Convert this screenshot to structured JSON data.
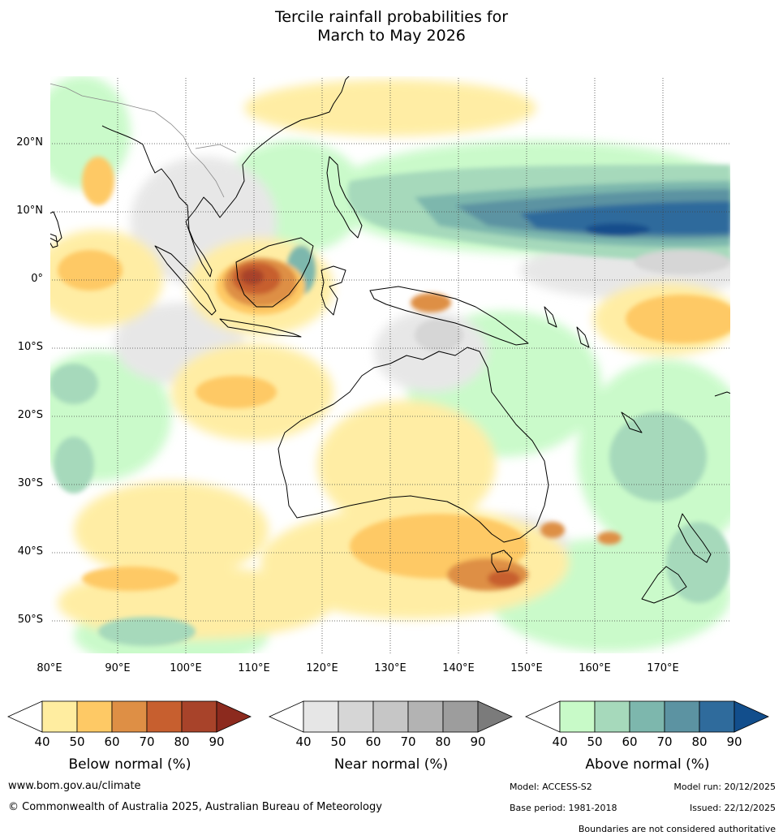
{
  "title_line1": "Tercile rainfall probabilities for",
  "title_line2": "March to May 2026",
  "map": {
    "lat_labels": [
      "20°N",
      "10°N",
      "0°",
      "10°S",
      "20°S",
      "30°S",
      "40°S",
      "50°S"
    ],
    "lon_labels": [
      "80°E",
      "90°E",
      "100°E",
      "110°E",
      "120°E",
      "130°E",
      "140°E",
      "150°E",
      "160°E",
      "170°E"
    ]
  },
  "legends": [
    {
      "title": "Below normal (%)",
      "ticks": [
        "40",
        "50",
        "60",
        "70",
        "80",
        "90"
      ],
      "colors": [
        "#ffffff",
        "#ffeda0",
        "#fec965",
        "#de8f45",
        "#c75f2f",
        "#a8432a",
        "#8c2a1e"
      ]
    },
    {
      "title": "Near normal (%)",
      "ticks": [
        "40",
        "50",
        "60",
        "70",
        "80",
        "90"
      ],
      "colors": [
        "#ffffff",
        "#e6e6e6",
        "#d6d6d6",
        "#c6c6c6",
        "#b3b3b3",
        "#9d9d9d",
        "#7b7b7b"
      ]
    },
    {
      "title": "Above normal (%)",
      "ticks": [
        "40",
        "50",
        "60",
        "70",
        "80",
        "90"
      ],
      "colors": [
        "#ffffff",
        "#c8fac8",
        "#a6d9bb",
        "#7db7ad",
        "#5c93a2",
        "#2f6b9c",
        "#124e8c"
      ]
    }
  ],
  "footer": {
    "website": "www.bom.gov.au/climate",
    "copyright": "© Commonwealth of Australia 2025, Australian Bureau of Meteorology",
    "model": "Model: ACCESS-S2",
    "model_run": "Model run: 20/12/2025",
    "base_period": "Base period: 1981-2018",
    "issued": "Issued: 22/12/2025",
    "disclaimer": "Boundaries are not considered authoritative"
  }
}
